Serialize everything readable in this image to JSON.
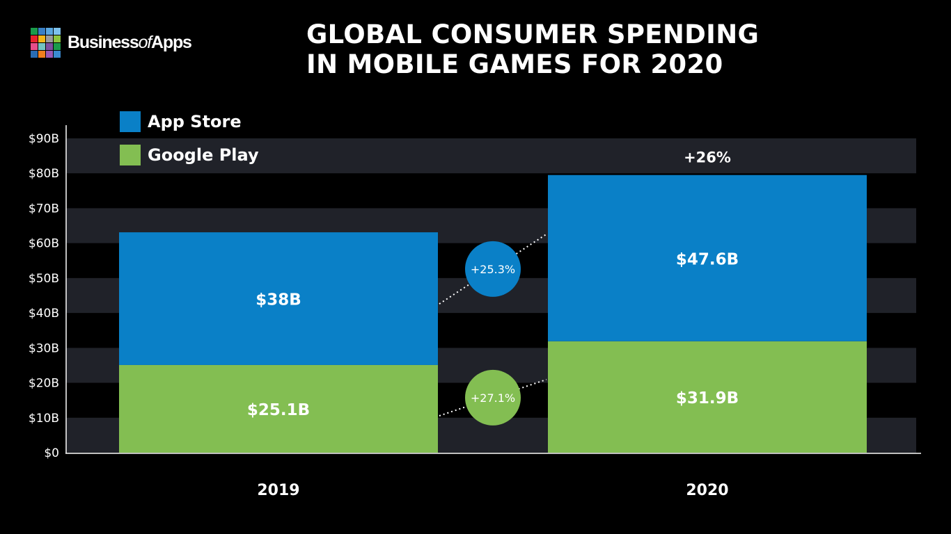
{
  "brand": {
    "name_part1": "Business",
    "name_part2": "of",
    "name_part3": "Apps",
    "logo_colors": [
      "#1a9b4b",
      "#3a7fc4",
      "#5aa7e0",
      "#7dc1ec",
      "#e8222d",
      "#f2b719",
      "#9c9c9c",
      "#8dc63f",
      "#e84d8a",
      "#75c3c1",
      "#7e4fa1",
      "#1a9b4b",
      "#2a6db4",
      "#f07f1e",
      "#9b59b6",
      "#3b8bd0"
    ]
  },
  "title": {
    "line1": "GLOBAL CONSUMER SPENDING",
    "line2": "IN MOBILE GAMES FOR 2020"
  },
  "colors": {
    "background": "#000000",
    "band_dark": "#202229",
    "app_store": "#0a80c7",
    "google_play": "#83be52"
  },
  "chart_data": {
    "type": "bar",
    "stacked": true,
    "title": "GLOBAL CONSUMER SPENDING IN MOBILE GAMES FOR 2020",
    "categories": [
      "2019",
      "2020"
    ],
    "series": [
      {
        "name": "Google Play",
        "values": [
          25.1,
          31.9
        ],
        "labels": [
          "$25.1B",
          "$31.9B"
        ],
        "color": "#83be52"
      },
      {
        "name": "App Store",
        "values": [
          38,
          47.6
        ],
        "labels": [
          "$38B",
          "$47.6B"
        ],
        "color": "#0a80c7"
      }
    ],
    "ylim": [
      0,
      90
    ],
    "yticks": [
      "$0",
      "$10B",
      "$20B",
      "$30B",
      "$40B",
      "$50B",
      "$60B",
      "$70B",
      "$80B",
      "$90B"
    ],
    "growth_labels": {
      "app_store": "+25.3%",
      "google_play": "+27.1%",
      "total": "+26%"
    },
    "legend_position": "top-left",
    "grid": "alternating-bands"
  }
}
